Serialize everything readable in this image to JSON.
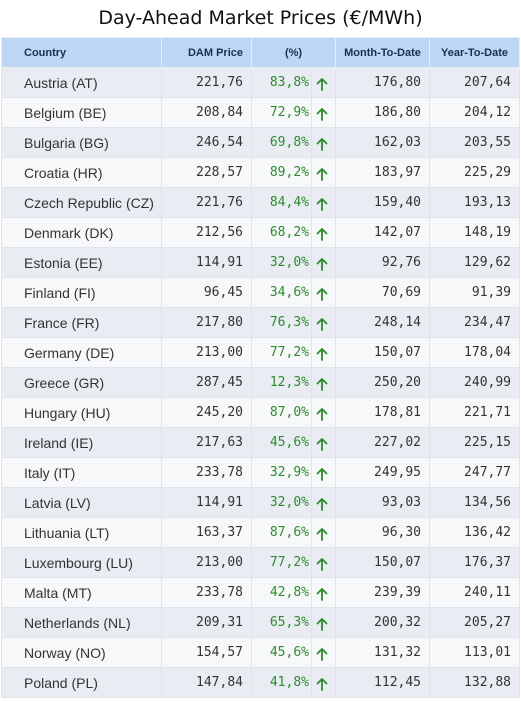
{
  "title": "Day-Ahead Market Prices (€/MWh)",
  "colors": {
    "header_bg": "#bcd6f3",
    "up": "#2e8b2e"
  },
  "headers": {
    "country": "Country",
    "dam_price": "DAM Price",
    "pct": "(%)",
    "mtd": "Month-To-Date",
    "ytd": "Year-To-Date"
  },
  "rows": [
    {
      "country": "Austria (AT)",
      "price": "221,76",
      "pct": "83,8%",
      "trend": "up",
      "mtd": "176,80",
      "ytd": "207,64"
    },
    {
      "country": "Belgium (BE)",
      "price": "208,84",
      "pct": "72,9%",
      "trend": "up",
      "mtd": "186,80",
      "ytd": "204,12"
    },
    {
      "country": "Bulgaria (BG)",
      "price": "246,54",
      "pct": "69,8%",
      "trend": "up",
      "mtd": "162,03",
      "ytd": "203,55"
    },
    {
      "country": "Croatia (HR)",
      "price": "228,57",
      "pct": "89,2%",
      "trend": "up",
      "mtd": "183,97",
      "ytd": "225,29"
    },
    {
      "country": "Czech Republic (CZ)",
      "price": "221,76",
      "pct": "84,4%",
      "trend": "up",
      "mtd": "159,40",
      "ytd": "193,13"
    },
    {
      "country": "Denmark (DK)",
      "price": "212,56",
      "pct": "68,2%",
      "trend": "up",
      "mtd": "142,07",
      "ytd": "148,19"
    },
    {
      "country": "Estonia (EE)",
      "price": "114,91",
      "pct": "32,0%",
      "trend": "up",
      "mtd": "92,76",
      "ytd": "129,62"
    },
    {
      "country": "Finland (FI)",
      "price": "96,45",
      "pct": "34,6%",
      "trend": "up",
      "mtd": "70,69",
      "ytd": "91,39"
    },
    {
      "country": "France (FR)",
      "price": "217,80",
      "pct": "76,3%",
      "trend": "up",
      "mtd": "248,14",
      "ytd": "234,47"
    },
    {
      "country": "Germany (DE)",
      "price": "213,00",
      "pct": "77,2%",
      "trend": "up",
      "mtd": "150,07",
      "ytd": "178,04"
    },
    {
      "country": "Greece (GR)",
      "price": "287,45",
      "pct": "12,3%",
      "trend": "up",
      "mtd": "250,20",
      "ytd": "240,99"
    },
    {
      "country": "Hungary (HU)",
      "price": "245,20",
      "pct": "87,0%",
      "trend": "up",
      "mtd": "178,81",
      "ytd": "221,71"
    },
    {
      "country": "Ireland (IE)",
      "price": "217,63",
      "pct": "45,6%",
      "trend": "up",
      "mtd": "227,02",
      "ytd": "225,15"
    },
    {
      "country": "Italy (IT)",
      "price": "233,78",
      "pct": "32,9%",
      "trend": "up",
      "mtd": "249,95",
      "ytd": "247,77"
    },
    {
      "country": "Latvia (LV)",
      "price": "114,91",
      "pct": "32,0%",
      "trend": "up",
      "mtd": "93,03",
      "ytd": "134,56"
    },
    {
      "country": "Lithuania (LT)",
      "price": "163,37",
      "pct": "87,6%",
      "trend": "up",
      "mtd": "96,30",
      "ytd": "136,42"
    },
    {
      "country": "Luxembourg (LU)",
      "price": "213,00",
      "pct": "77,2%",
      "trend": "up",
      "mtd": "150,07",
      "ytd": "176,37"
    },
    {
      "country": "Malta (MT)",
      "price": "233,78",
      "pct": "42,8%",
      "trend": "up",
      "mtd": "239,39",
      "ytd": "240,11"
    },
    {
      "country": "Netherlands (NL)",
      "price": "209,31",
      "pct": "65,3%",
      "trend": "up",
      "mtd": "200,32",
      "ytd": "205,27"
    },
    {
      "country": "Norway (NO)",
      "price": "154,57",
      "pct": "45,6%",
      "trend": "up",
      "mtd": "131,32",
      "ytd": "113,01"
    },
    {
      "country": "Poland (PL)",
      "price": "147,84",
      "pct": "41,8%",
      "trend": "up",
      "mtd": "112,45",
      "ytd": "132,88"
    }
  ]
}
